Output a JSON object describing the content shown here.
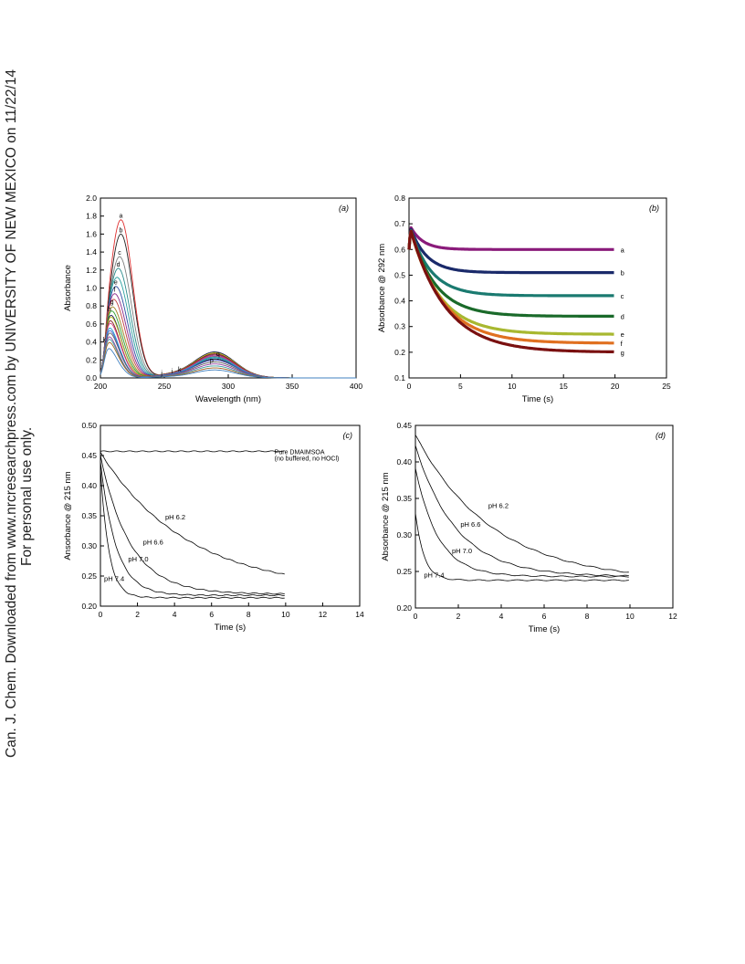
{
  "watermark": {
    "line1": "Can. J. Chem. Downloaded from www.nrcresearchpress.com by UNIVERSITY OF NEW MEXICO on 11/22/14",
    "line2": "For personal use only."
  },
  "chart_data": [
    {
      "id": "a",
      "type": "line",
      "panel_label": "(a)",
      "xlabel": "Wavelength (nm)",
      "ylabel": "Absorbance",
      "xlim": [
        200,
        400
      ],
      "ylim": [
        0,
        2.0
      ],
      "xticks": [
        200,
        250,
        300,
        350,
        400
      ],
      "yticks": [
        0.0,
        0.2,
        0.4,
        0.6,
        0.8,
        1.0,
        1.2,
        1.4,
        1.6,
        1.8,
        2.0
      ],
      "grid": false,
      "series": [
        {
          "name": "a",
          "color": "#e03030",
          "peak": 1.76,
          "peak_x": 216,
          "band": 0.18
        },
        {
          "name": "b",
          "color": "#222222",
          "peak": 1.6,
          "peak_x": 216,
          "band": 0.19
        },
        {
          "name": "c",
          "color": "#808080",
          "peak": 1.35,
          "peak_x": 215,
          "band": 0.2
        },
        {
          "name": "d",
          "color": "#2a8a8a",
          "peak": 1.22,
          "peak_x": 214,
          "band": 0.21
        },
        {
          "name": "",
          "color": "#2aa0a0",
          "peak": 1.12,
          "peak_x": 213,
          "band": 0.21
        },
        {
          "name": "e",
          "color": "#2a4aa0",
          "peak": 1.02,
          "peak_x": 212,
          "band": 0.22
        },
        {
          "name": "f",
          "color": "#8a2a8a",
          "peak": 0.94,
          "peak_x": 211,
          "band": 0.23
        },
        {
          "name": "",
          "color": "#c04040",
          "peak": 0.88,
          "peak_x": 210,
          "band": 0.24
        },
        {
          "name": "g",
          "color": "#a08020",
          "peak": 0.8,
          "peak_x": 209,
          "band": 0.24
        },
        {
          "name": "",
          "color": "#30a030",
          "peak": 0.76,
          "peak_x": 208,
          "band": 0.25
        },
        {
          "name": "h",
          "color": "#1a1a50",
          "peak": 0.72,
          "peak_x": 207,
          "band": 0.26
        },
        {
          "name": "",
          "color": "#c0c020",
          "peak": 0.7,
          "peak_x": 207,
          "band": 0.25
        },
        {
          "name": "",
          "color": "#802020",
          "peak": 0.67,
          "peak_x": 206,
          "band": 0.24
        },
        {
          "name": "",
          "color": "#d04080",
          "peak": 0.64,
          "peak_x": 206,
          "band": 0.22
        },
        {
          "name": "",
          "color": "#20a0d0",
          "peak": 0.6,
          "peak_x": 205,
          "band": 0.2
        },
        {
          "name": "",
          "color": "#4060d0",
          "peak": 0.57,
          "peak_x": 205,
          "band": 0.18
        },
        {
          "name": "",
          "color": "#606060",
          "peak": 0.54,
          "peak_x": 205,
          "band": 0.16
        },
        {
          "name": "",
          "color": "#9040a0",
          "peak": 0.51,
          "peak_x": 204,
          "band": 0.14
        },
        {
          "name": "",
          "color": "#40a0a0",
          "peak": 0.48,
          "peak_x": 204,
          "band": 0.12
        },
        {
          "name": "",
          "color": "#a06020",
          "peak": 0.44,
          "peak_x": 204,
          "band": 0.1
        },
        {
          "name": "k",
          "color": "#4080c0",
          "peak": 0.38,
          "peak_x": 203,
          "band": 0.08
        }
      ],
      "annotations": [
        "a",
        "b",
        "c",
        "d",
        "e",
        "f",
        "g",
        "h",
        "i",
        "j",
        "k",
        "q",
        "p"
      ]
    },
    {
      "id": "b",
      "type": "line",
      "panel_label": "(b)",
      "xlabel": "Time (s)",
      "ylabel": "Absorbance @ 292 nm",
      "xlim": [
        0,
        25
      ],
      "ylim": [
        0.1,
        0.8
      ],
      "xticks": [
        0,
        5,
        10,
        15,
        20,
        25
      ],
      "yticks": [
        0.1,
        0.2,
        0.3,
        0.4,
        0.5,
        0.6,
        0.7,
        0.8
      ],
      "grid": false,
      "series": [
        {
          "name": "a",
          "color": "#8a1a7a",
          "start": 0.7,
          "end": 0.6,
          "tau": 1.2
        },
        {
          "name": "b",
          "color": "#1a2a6a",
          "start": 0.7,
          "end": 0.51,
          "tau": 1.6
        },
        {
          "name": "c",
          "color": "#1a7a70",
          "start": 0.7,
          "end": 0.42,
          "tau": 2.0
        },
        {
          "name": "d",
          "color": "#1a6a2a",
          "start": 0.7,
          "end": 0.34,
          "tau": 2.4
        },
        {
          "name": "e",
          "color": "#a8b830",
          "start": 0.7,
          "end": 0.27,
          "tau": 2.8
        },
        {
          "name": "f",
          "color": "#e07020",
          "start": 0.7,
          "end": 0.235,
          "tau": 3.1
        },
        {
          "name": "g",
          "color": "#7a1010",
          "start": 0.7,
          "end": 0.2,
          "tau": 3.4
        }
      ]
    },
    {
      "id": "c",
      "type": "line",
      "panel_label": "(c)",
      "xlabel": "Time (s)",
      "ylabel": "Ansorbance @ 215 nm",
      "xlim": [
        0,
        14
      ],
      "ylim": [
        0.2,
        0.5
      ],
      "xticks": [
        0,
        2,
        4,
        6,
        8,
        10,
        12,
        14
      ],
      "yticks": [
        0.2,
        0.25,
        0.3,
        0.35,
        0.4,
        0.45,
        0.5
      ],
      "grid": false,
      "series": [
        {
          "name": "Pure DMAIMSOA",
          "start": 0.457,
          "end": 0.453,
          "tau": 1000
        },
        {
          "name": "pH 6.2",
          "start": 0.455,
          "end": 0.225,
          "tau": 4.7
        },
        {
          "name": "pH 6.6",
          "start": 0.45,
          "end": 0.22,
          "tau": 1.6
        },
        {
          "name": "pH 7.0",
          "start": 0.44,
          "end": 0.218,
          "tau": 0.85
        },
        {
          "name": "pH 7.4",
          "start": 0.43,
          "end": 0.214,
          "tau": 0.45
        }
      ],
      "annotations": {
        "pure_line1": "Pure DMAIMSOA",
        "pure_line2": "(no buffered, no HOCl)",
        "ph62": "pH 6.2",
        "ph66": "pH 6.6",
        "ph70": "pH 7.0",
        "ph74": "pH 7.4"
      }
    },
    {
      "id": "d",
      "type": "line",
      "panel_label": "(d)",
      "xlabel": "Time (s)",
      "ylabel": "Absorbance @ 215 nm",
      "xlim": [
        0,
        12
      ],
      "ylim": [
        0.2,
        0.45
      ],
      "xticks": [
        0,
        2,
        4,
        6,
        8,
        10,
        12
      ],
      "yticks": [
        0.2,
        0.25,
        0.3,
        0.35,
        0.4,
        0.45
      ],
      "grid": false,
      "series": [
        {
          "name": "pH 6.2",
          "start": 0.437,
          "end": 0.236,
          "tau": 3.6
        },
        {
          "name": "pH 6.6",
          "start": 0.422,
          "end": 0.243,
          "tau": 1.9
        },
        {
          "name": "pH 7.0",
          "start": 0.392,
          "end": 0.243,
          "tau": 1.05
        },
        {
          "name": "pH 7.4",
          "start": 0.33,
          "end": 0.238,
          "tau": 0.4
        }
      ],
      "annotations": {
        "ph62": "pH 6.2",
        "ph66": "pH 6.6",
        "ph70": "pH 7.0",
        "ph74": "pH 7.4"
      }
    }
  ]
}
